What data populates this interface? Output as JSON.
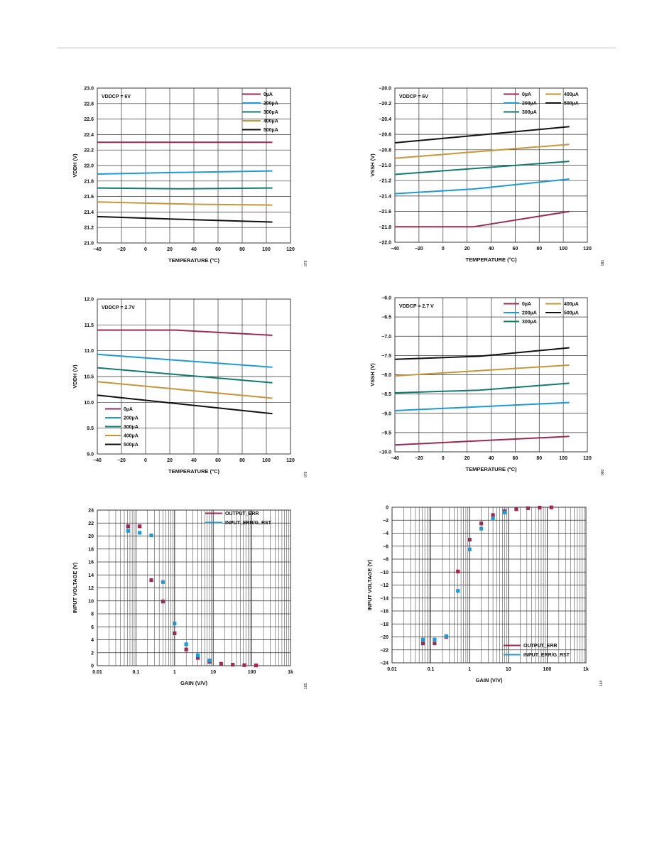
{
  "colors": {
    "s0": "#9b2a55",
    "s200": "#1e9ad6",
    "s300": "#137a72",
    "s400": "#c7963a",
    "s500": "#111111",
    "grid": "#333333",
    "text": "#111111"
  },
  "chart_data": [
    {
      "id": "c1",
      "type": "line",
      "annotation": "VDDCP = 6V",
      "xlabel": "TEMPERATURE (°C)",
      "ylabel": "VDDH (V)",
      "xlim": [
        -40,
        120
      ],
      "ylim": [
        21.0,
        23.0
      ],
      "xticks": [
        "−40",
        "−20",
        "0",
        "20",
        "40",
        "60",
        "80",
        "100",
        "120"
      ],
      "yticks": [
        "21.0",
        "21.2",
        "21.4",
        "21.6",
        "21.8",
        "22.0",
        "22.2",
        "22.4",
        "22.6",
        "22.8",
        "23.0"
      ],
      "legend_position": "top-right",
      "figure_code": "079",
      "series": [
        {
          "name": "0µA",
          "color": "s0",
          "x": [
            -40,
            105
          ],
          "y": [
            22.3,
            22.3
          ]
        },
        {
          "name": "200µA",
          "color": "s200",
          "x": [
            -40,
            25,
            105
          ],
          "y": [
            21.89,
            21.91,
            21.93
          ]
        },
        {
          "name": "300µA",
          "color": "s300",
          "x": [
            -40,
            30,
            105
          ],
          "y": [
            21.71,
            21.7,
            21.71
          ]
        },
        {
          "name": "400µA",
          "color": "s400",
          "x": [
            -40,
            40,
            105
          ],
          "y": [
            21.53,
            21.5,
            21.49
          ]
        },
        {
          "name": "500µA",
          "color": "s500",
          "x": [
            -40,
            40,
            105
          ],
          "y": [
            21.34,
            21.3,
            21.27
          ]
        }
      ]
    },
    {
      "id": "c2",
      "type": "line",
      "annotation": "VDDCP = 6V",
      "xlabel": "TEMPERATURE (°C)",
      "ylabel": "VSSH (V)",
      "xlim": [
        -40,
        120
      ],
      "ylim": [
        -22.0,
        -20.0
      ],
      "xticks": [
        "−40",
        "−20",
        "0",
        "20",
        "40",
        "60",
        "80",
        "100",
        "120"
      ],
      "yticks": [
        "−22.0",
        "−21.8",
        "−21.6",
        "−21.4",
        "−21.2",
        "−21.0",
        "−20.8",
        "−20.6",
        "−20.4",
        "−20.2",
        "−20.0"
      ],
      "legend_position": "top-right",
      "figure_code": "081",
      "series": [
        {
          "name": "0µA",
          "color": "s0",
          "x": [
            -40,
            25,
            105
          ],
          "y": [
            -21.8,
            -21.8,
            -21.6
          ]
        },
        {
          "name": "200µA",
          "color": "s200",
          "x": [
            -40,
            25,
            105
          ],
          "y": [
            -21.37,
            -21.31,
            -21.18
          ]
        },
        {
          "name": "300µA",
          "color": "s300",
          "x": [
            -40,
            105
          ],
          "y": [
            -21.12,
            -20.95
          ]
        },
        {
          "name": "400µA",
          "color": "s400",
          "x": [
            -40,
            105
          ],
          "y": [
            -20.91,
            -20.73
          ]
        },
        {
          "name": "500µA",
          "color": "s500",
          "x": [
            -40,
            105
          ],
          "y": [
            -20.71,
            -20.5
          ]
        }
      ]
    },
    {
      "id": "c3",
      "type": "line",
      "annotation": "VDDCP = 2.7V",
      "xlabel": "TEMPERATURE (°C)",
      "ylabel": "VDDH (V)",
      "xlim": [
        -40,
        120
      ],
      "ylim": [
        9.0,
        12.0
      ],
      "xticks": [
        "−40",
        "−20",
        "0",
        "20",
        "40",
        "60",
        "80",
        "100",
        "120"
      ],
      "yticks": [
        "9.0",
        "9.5",
        "10.0",
        "10.5",
        "11.0",
        "11.5",
        "12.0"
      ],
      "legend_position": "bottom-left",
      "figure_code": "078",
      "series": [
        {
          "name": "0µA",
          "color": "s0",
          "x": [
            -40,
            25,
            105
          ],
          "y": [
            11.4,
            11.4,
            11.3
          ]
        },
        {
          "name": "200µA",
          "color": "s200",
          "x": [
            -40,
            105
          ],
          "y": [
            10.93,
            10.68
          ]
        },
        {
          "name": "300µA",
          "color": "s300",
          "x": [
            -40,
            105
          ],
          "y": [
            10.67,
            10.38
          ]
        },
        {
          "name": "400µA",
          "color": "s400",
          "x": [
            -40,
            105
          ],
          "y": [
            10.4,
            10.08
          ]
        },
        {
          "name": "500µA",
          "color": "s500",
          "x": [
            -40,
            105
          ],
          "y": [
            10.14,
            9.78
          ]
        }
      ]
    },
    {
      "id": "c4",
      "type": "line",
      "annotation": "VDDCP = 2.7 V",
      "xlabel": "TEMPERATURE (°C)",
      "ylabel": "VSSH (V)",
      "xlim": [
        -40,
        120
      ],
      "ylim": [
        -10.0,
        -6.0
      ],
      "xticks": [
        "−40",
        "−20",
        "0",
        "20",
        "40",
        "60",
        "80",
        "100",
        "120"
      ],
      "yticks": [
        "−10.0",
        "−9.5",
        "−9.0",
        "−8.5",
        "−8.0",
        "−7.5",
        "−7.0",
        "−6.5",
        "−6.0"
      ],
      "legend_position": "top-right",
      "figure_code": "080",
      "series": [
        {
          "name": "0µA",
          "color": "s0",
          "x": [
            -40,
            105
          ],
          "y": [
            -9.82,
            -9.6
          ]
        },
        {
          "name": "200µA",
          "color": "s200",
          "x": [
            -40,
            105
          ],
          "y": [
            -8.93,
            -8.72
          ]
        },
        {
          "name": "300µA",
          "color": "s300",
          "x": [
            -40,
            30,
            105
          ],
          "y": [
            -8.47,
            -8.4,
            -8.22
          ]
        },
        {
          "name": "400µA",
          "color": "s400",
          "x": [
            -40,
            105
          ],
          "y": [
            -8.03,
            -7.75
          ]
        },
        {
          "name": "500µA",
          "color": "s500",
          "x": [
            -40,
            30,
            105
          ],
          "y": [
            -7.6,
            -7.52,
            -7.3
          ]
        }
      ]
    },
    {
      "id": "c5",
      "type": "scatter",
      "xlabel": "GAIN (V/V)",
      "ylabel": "INPUT VOLTAGE (V)",
      "xscale": "log",
      "xlim": [
        0.01,
        1000
      ],
      "ylim": [
        0,
        24
      ],
      "xticks": [
        {
          "v": 0.01,
          "label": "0.01"
        },
        {
          "v": 0.1,
          "label": "0.1"
        },
        {
          "v": 1,
          "label": "1"
        },
        {
          "v": 10,
          "label": "10"
        },
        {
          "v": 100,
          "label": "100"
        },
        {
          "v": 1000,
          "label": "1k"
        }
      ],
      "yticks": [
        "0",
        "2",
        "4",
        "6",
        "8",
        "10",
        "12",
        "14",
        "16",
        "18",
        "20",
        "22",
        "24"
      ],
      "legend_position": "top-right",
      "figure_code": "165",
      "series": [
        {
          "name": "OUTPUT_ERR",
          "color": "s0",
          "x": [
            0.0625,
            0.125,
            0.25,
            0.5,
            1,
            2,
            4,
            8,
            16,
            32,
            64,
            128
          ],
          "y": [
            21.5,
            21.5,
            13.2,
            9.9,
            5.0,
            2.5,
            1.2,
            0.6,
            0.3,
            0.15,
            0.08,
            0.04
          ]
        },
        {
          "name": "INPUT_ERR/G_RST",
          "color": "s200",
          "x": [
            0.0625,
            0.125,
            0.25,
            0.5,
            1,
            2,
            4,
            8
          ],
          "y": [
            20.8,
            20.5,
            20.1,
            12.9,
            6.5,
            3.3,
            1.6,
            0.8
          ]
        }
      ]
    },
    {
      "id": "c6",
      "type": "scatter",
      "xlabel": "GAIN (V/V)",
      "ylabel": "INPUT VOLTAGE (V)",
      "xscale": "log",
      "xlim": [
        0.01,
        1000
      ],
      "ylim": [
        -24,
        0
      ],
      "xticks": [
        {
          "v": 0.01,
          "label": "0.01"
        },
        {
          "v": 0.1,
          "label": "0.1"
        },
        {
          "v": 1,
          "label": "1"
        },
        {
          "v": 10,
          "label": "10"
        },
        {
          "v": 100,
          "label": "100"
        },
        {
          "v": 1000,
          "label": "1k"
        }
      ],
      "yticks": [
        "−24",
        "−22",
        "−20",
        "−18",
        "−16",
        "−14",
        "−12",
        "−10",
        "−8",
        "−6",
        "−4",
        "−2",
        "0"
      ],
      "legend_position": "bottom-right",
      "figure_code": "164",
      "series": [
        {
          "name": "OUTPUT_ERR",
          "color": "s0",
          "x": [
            0.0625,
            0.125,
            0.25,
            0.5,
            1,
            2,
            4,
            8,
            16,
            32,
            64,
            128
          ],
          "y": [
            -21.0,
            -21.0,
            -20.0,
            -9.9,
            -5.0,
            -2.5,
            -1.2,
            -0.6,
            -0.3,
            -0.15,
            -0.05,
            -0.02
          ]
        },
        {
          "name": "INPUT_ERR/G_RST",
          "color": "s200",
          "x": [
            0.0625,
            0.125,
            0.25,
            0.5,
            1,
            2,
            4,
            8
          ],
          "y": [
            -20.4,
            -20.4,
            -19.9,
            -12.9,
            -6.5,
            -3.3,
            -1.7,
            -0.8
          ]
        }
      ]
    }
  ]
}
